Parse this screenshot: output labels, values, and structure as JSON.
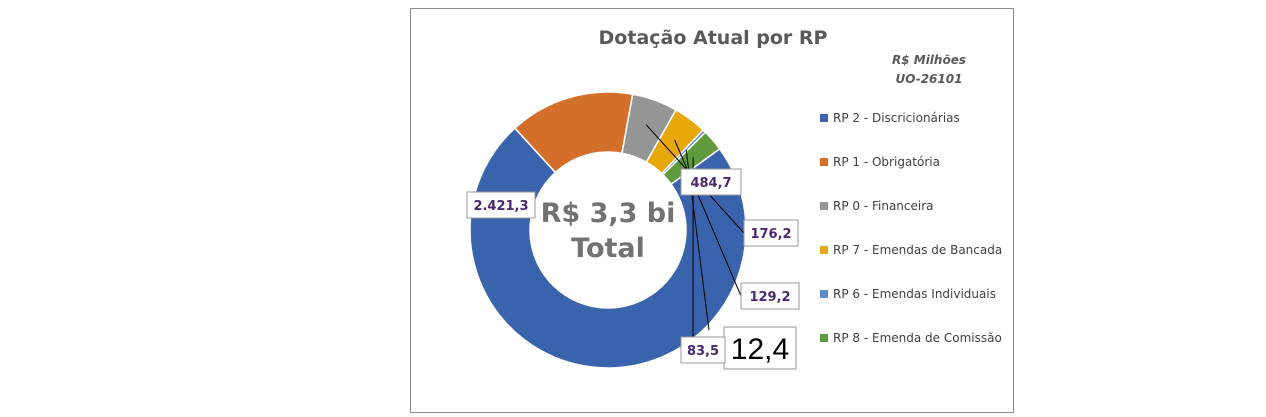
{
  "chart_data": {
    "type": "pie",
    "style": "doughnut",
    "title": "Dotação Atual por RP",
    "unit_line1": "R$ Milhões",
    "unit_line2": "UO-26101",
    "center_line1": "R$ 3,3 bi",
    "center_line2": "Total",
    "legend_position": "right",
    "slices": [
      {
        "name": "RP 2 - Discricionárias",
        "value": 2421.3,
        "label": "2.421,3",
        "color": "#3a63ad"
      },
      {
        "name": "RP 1 - Obrigatória",
        "value": 484.7,
        "label": "484,7",
        "color": "#d36f2a"
      },
      {
        "name": "RP 0 - Financeira",
        "value": 176.2,
        "label": "176,2",
        "color": "#959595"
      },
      {
        "name": "RP 7 - Emendas de Bancada",
        "value": 129.2,
        "label": "129,2",
        "color": "#e8a80c"
      },
      {
        "name": "RP 6 - Emendas Individuais",
        "value": 12.4,
        "label": "12,4",
        "color": "#5a8fcb"
      },
      {
        "name": "RP 8 - Emenda de Comissão",
        "value": 83.5,
        "label": "83,5",
        "color": "#5f9a3d"
      }
    ]
  }
}
